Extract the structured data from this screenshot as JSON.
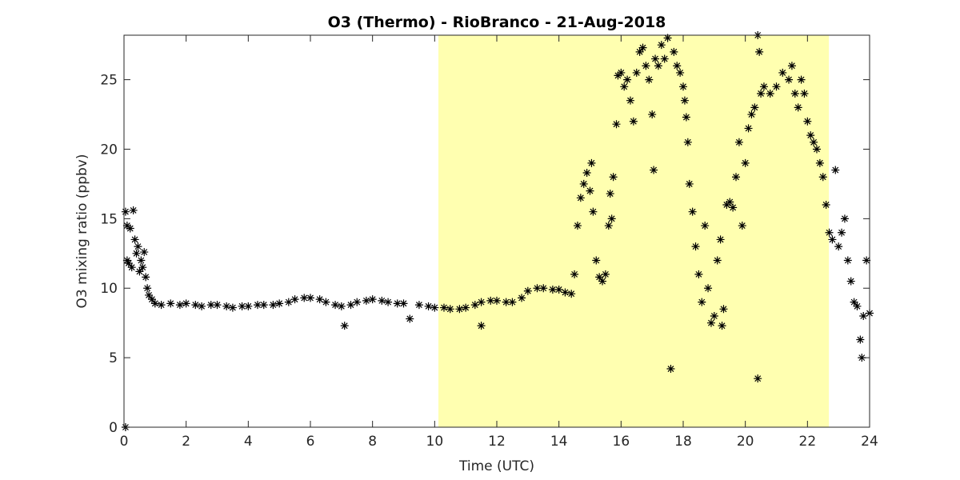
{
  "chart_data": {
    "type": "scatter",
    "title": "O3 (Thermo) - RioBranco - 21-Aug-2018",
    "x_label": "Time (UTC)",
    "y_label": "O3 mixing ratio (ppbv)",
    "xlim": [
      0,
      24
    ],
    "ylim": [
      0,
      28.2
    ],
    "xticks": [
      0,
      2,
      4,
      6,
      8,
      10,
      12,
      14,
      16,
      18,
      20,
      22,
      24
    ],
    "yticks": [
      0,
      5,
      10,
      15,
      20,
      25
    ],
    "shaded_xrange": [
      10.12,
      22.69
    ],
    "shade_color": "#ffffb0",
    "marker": "asterisk",
    "color": "#000000",
    "x": [
      0.05,
      0.05,
      0.1,
      0.1,
      0.15,
      0.2,
      0.25,
      0.3,
      0.35,
      0.4,
      0.45,
      0.5,
      0.55,
      0.6,
      0.65,
      0.7,
      0.75,
      0.8,
      0.9,
      1.0,
      1.2,
      1.5,
      1.8,
      2,
      2.3,
      2.5,
      2.8,
      3,
      3.3,
      3.5,
      3.8,
      4,
      4.3,
      4.5,
      4.8,
      5,
      5.3,
      5.5,
      5.8,
      6,
      6.3,
      6.5,
      6.8,
      7,
      7.1,
      7.3,
      7.5,
      7.8,
      8,
      8.3,
      8.5,
      8.8,
      9,
      9.2,
      9.5,
      9.8,
      10,
      10.3,
      10.5,
      10.8,
      11,
      11.3,
      11.5,
      11.5,
      11.8,
      12,
      12.3,
      12.5,
      12.8,
      13,
      13.3,
      13.5,
      13.8,
      14,
      14.2,
      14.4,
      14.5,
      14.6,
      14.7,
      14.8,
      14.9,
      15.0,
      15.05,
      15.1,
      15.2,
      15.3,
      15.4,
      15.5,
      15.6,
      15.65,
      15.7,
      15.75,
      15.85,
      15.9,
      16,
      16.1,
      16.2,
      16.3,
      16.4,
      16.5,
      16.6,
      16.7,
      16.8,
      16.9,
      17,
      17.05,
      17.1,
      17.2,
      17.3,
      17.4,
      17.5,
      17.6,
      17.7,
      17.8,
      17.9,
      18,
      18.05,
      18.1,
      18.15,
      18.2,
      18.3,
      18.4,
      18.5,
      18.6,
      18.7,
      18.8,
      18.9,
      19,
      19.1,
      19.2,
      19.25,
      19.3,
      19.4,
      19.5,
      19.6,
      19.7,
      19.8,
      19.9,
      20,
      20.1,
      20.2,
      20.3,
      20.4,
      20.4,
      20.45,
      20.5,
      20.6,
      20.8,
      21,
      21.2,
      21.4,
      21.5,
      21.6,
      21.7,
      21.8,
      21.9,
      22,
      22.1,
      22.2,
      22.3,
      22.4,
      22.5,
      22.6,
      22.7,
      22.8,
      22.9,
      23,
      23.1,
      23.2,
      23.3,
      23.4,
      23.5,
      23.6,
      23.7,
      23.75,
      23.8,
      23.9,
      24
    ],
    "values": [
      15.5,
      0,
      14.5,
      12,
      11.8,
      14.3,
      11.5,
      15.6,
      13.5,
      12.5,
      13,
      11.2,
      12,
      11.5,
      12.6,
      10.8,
      10,
      9.5,
      9.2,
      8.9,
      8.8,
      8.9,
      8.8,
      8.9,
      8.8,
      8.7,
      8.8,
      8.8,
      8.7,
      8.6,
      8.7,
      8.7,
      8.8,
      8.8,
      8.8,
      8.9,
      9.0,
      9.2,
      9.3,
      9.3,
      9.2,
      9.0,
      8.8,
      8.7,
      7.3,
      8.8,
      9.0,
      9.1,
      9.2,
      9.1,
      9.0,
      8.9,
      8.9,
      7.8,
      8.8,
      8.7,
      8.6,
      8.6,
      8.5,
      8.5,
      8.6,
      8.8,
      9.0,
      7.3,
      9.1,
      9.1,
      9.0,
      9.0,
      9.3,
      9.8,
      10.0,
      10.0,
      9.9,
      9.9,
      9.7,
      9.6,
      11,
      14.5,
      16.5,
      17.5,
      18.3,
      17,
      19,
      15.5,
      12,
      10.8,
      10.5,
      11,
      14.5,
      16.8,
      15,
      18,
      21.8,
      25.3,
      25.5,
      24.5,
      25,
      23.5,
      22,
      25.5,
      27,
      27.3,
      26,
      25,
      22.5,
      18.5,
      26.5,
      26,
      27.5,
      26.5,
      28,
      4.2,
      27,
      26,
      25.5,
      24.5,
      23.5,
      22.3,
      20.5,
      17.5,
      15.5,
      13,
      11,
      9,
      14.5,
      10,
      7.5,
      8,
      12,
      13.5,
      7.3,
      8.5,
      16,
      16.2,
      15.8,
      18,
      20.5,
      14.5,
      19,
      21.5,
      22.5,
      23,
      3.5,
      28.2,
      27,
      24,
      24.5,
      24,
      24.5,
      25.5,
      25,
      26,
      24,
      23,
      25,
      24,
      22,
      21,
      20.5,
      20,
      19,
      18,
      16,
      14,
      13.5,
      18.5,
      13,
      14,
      15,
      12,
      10.5,
      9,
      8.7,
      6.3,
      5,
      8,
      12,
      8.2
    ]
  }
}
